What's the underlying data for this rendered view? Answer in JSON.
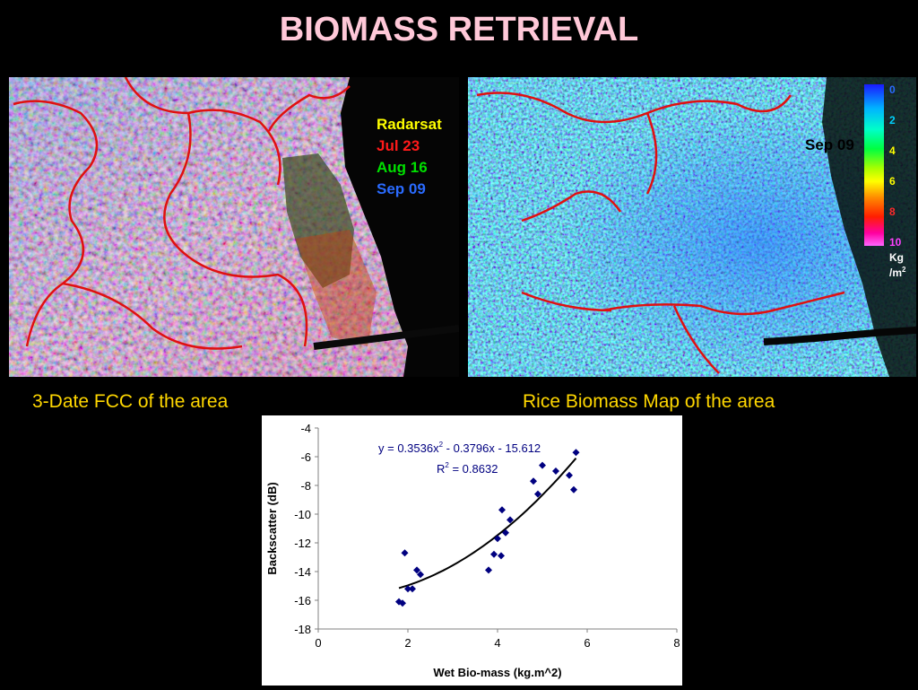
{
  "slide": {
    "title": "BIOMASS RETRIEVAL",
    "fcc_caption": "3-Date FCC of the area",
    "biomass_caption": "Rice Biomass Map of the area"
  },
  "fcc_legend": {
    "items": [
      {
        "label": "Radarsat",
        "color": "#ffff00"
      },
      {
        "label": "Jul 23",
        "color": "#ff1a1a"
      },
      {
        "label": "Aug 16",
        "color": "#00e000"
      },
      {
        "label": "Sep 09",
        "color": "#2a6bff"
      }
    ]
  },
  "biomass_map": {
    "date_label": "Sep 09",
    "colorbar": {
      "ticks": [
        {
          "label": "0",
          "color": "#2a6bff"
        },
        {
          "label": "2",
          "color": "#00d0ff"
        },
        {
          "label": "4",
          "color": "#ffff00"
        },
        {
          "label": "6",
          "color": "#ffff00"
        },
        {
          "label": "8",
          "color": "#ff2a2a"
        },
        {
          "label": "10",
          "color": "#ff40ff"
        }
      ],
      "unit_line1": "Kg",
      "unit_line2": "/m",
      "unit_sup": "2"
    }
  },
  "chart_data": {
    "type": "scatter",
    "xlabel": "Wet Bio-mass (kg.m^2)",
    "ylabel": "Backscatter (dB)",
    "xlim": [
      0,
      8
    ],
    "ylim": [
      -18,
      -4
    ],
    "xticks": [
      "0",
      "2",
      "4",
      "6",
      "8"
    ],
    "yticks": [
      "-4",
      "-6",
      "-8",
      "-10",
      "-12",
      "-14",
      "-16",
      "-18"
    ],
    "grid": false,
    "equation": "y = 0.3536x",
    "equation_sup": "2",
    "equation_rest": " - 0.3796x - 15.612",
    "r2_label": "R",
    "r2_sup": "2",
    "r2_value": " = 0.8632",
    "trend": {
      "a": 0.3536,
      "b": -0.3796,
      "c": -15.612,
      "x_range": [
        1.8,
        5.75
      ]
    },
    "points": [
      {
        "x": 1.8,
        "y": -16.1
      },
      {
        "x": 1.88,
        "y": -16.2
      },
      {
        "x": 1.93,
        "y": -12.7
      },
      {
        "x": 2.0,
        "y": -15.2
      },
      {
        "x": 2.1,
        "y": -15.2
      },
      {
        "x": 2.2,
        "y": -13.9
      },
      {
        "x": 2.28,
        "y": -14.2
      },
      {
        "x": 3.8,
        "y": -13.9
      },
      {
        "x": 3.92,
        "y": -12.8
      },
      {
        "x": 4.0,
        "y": -11.7
      },
      {
        "x": 4.08,
        "y": -12.9
      },
      {
        "x": 4.1,
        "y": -9.7
      },
      {
        "x": 4.18,
        "y": -11.3
      },
      {
        "x": 4.28,
        "y": -10.4
      },
      {
        "x": 4.8,
        "y": -7.7
      },
      {
        "x": 4.9,
        "y": -8.6
      },
      {
        "x": 5.0,
        "y": -6.6
      },
      {
        "x": 5.3,
        "y": -7.0
      },
      {
        "x": 5.6,
        "y": -7.3
      },
      {
        "x": 5.7,
        "y": -8.3
      },
      {
        "x": 5.75,
        "y": -5.7
      }
    ]
  }
}
